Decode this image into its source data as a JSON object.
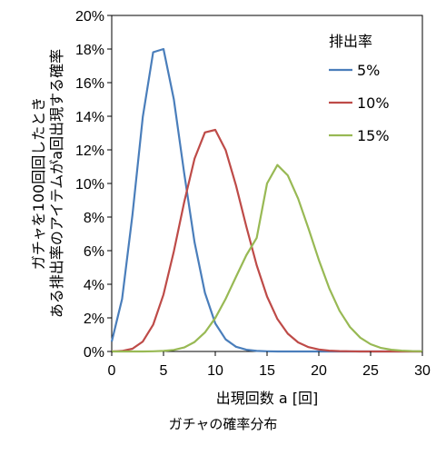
{
  "chart_data": {
    "type": "line",
    "xlabel": "出現回数 a [回]",
    "ylabel_lines": [
      "ガチャを100回回したとき",
      "ある排出率のアイテムがa回出現する確率"
    ],
    "xlim": [
      0,
      30
    ],
    "ylim": [
      0,
      0.2
    ],
    "xticks": [
      0,
      5,
      10,
      15,
      20,
      25,
      30
    ],
    "xtick_labels": [
      "0",
      "5",
      "10",
      "15",
      "20",
      "25",
      "30"
    ],
    "yticks": [
      0,
      0.02,
      0.04,
      0.06,
      0.08,
      0.1,
      0.12,
      0.14,
      0.16,
      0.18,
      0.2
    ],
    "ytick_labels": [
      "0%",
      "2%",
      "4%",
      "6%",
      "8%",
      "10%",
      "12%",
      "14%",
      "16%",
      "18%",
      "20%"
    ],
    "grid": false,
    "legend": {
      "title": "排出率",
      "position": "top-right"
    },
    "x": [
      0,
      1,
      2,
      3,
      4,
      5,
      6,
      7,
      8,
      9,
      10,
      11,
      12,
      13,
      14,
      15,
      16,
      17,
      18,
      19,
      20,
      21,
      22,
      23,
      24,
      25,
      26,
      27,
      28,
      29,
      30
    ],
    "series": [
      {
        "name": "5%",
        "color": "#4a7ebb",
        "values": [
          0.0059,
          0.0312,
          0.0812,
          0.1396,
          0.1781,
          0.18,
          0.15,
          0.106,
          0.0649,
          0.0349,
          0.0167,
          0.0072,
          0.0028,
          0.001,
          0.0003,
          0.0001,
          0,
          0,
          0,
          0,
          0,
          0,
          0,
          0,
          0,
          0,
          0,
          0,
          0,
          0,
          0
        ]
      },
      {
        "name": "10%",
        "color": "#be4b48",
        "values": [
          0,
          0.0003,
          0.0016,
          0.0059,
          0.0159,
          0.0339,
          0.0596,
          0.0889,
          0.1148,
          0.1304,
          0.1319,
          0.1199,
          0.0988,
          0.0743,
          0.0513,
          0.0327,
          0.0193,
          0.0106,
          0.0054,
          0.0026,
          0.0012,
          0.0005,
          0.0002,
          0.0001,
          0,
          0,
          0,
          0,
          0,
          0,
          0
        ]
      },
      {
        "name": "15%",
        "color": "#98b954",
        "values": [
          0,
          0,
          0,
          0,
          0.0001,
          0.0003,
          0.0009,
          0.0024,
          0.0056,
          0.0113,
          0.0199,
          0.0313,
          0.0444,
          0.0573,
          0.0676,
          0.1,
          0.111,
          0.1048,
          0.091,
          0.0732,
          0.0545,
          0.0377,
          0.0242,
          0.0146,
          0.0082,
          0.0043,
          0.0021,
          0.001,
          0.0005,
          0.0002,
          0.0001
        ]
      }
    ]
  },
  "caption": "ガチャの確率分布"
}
